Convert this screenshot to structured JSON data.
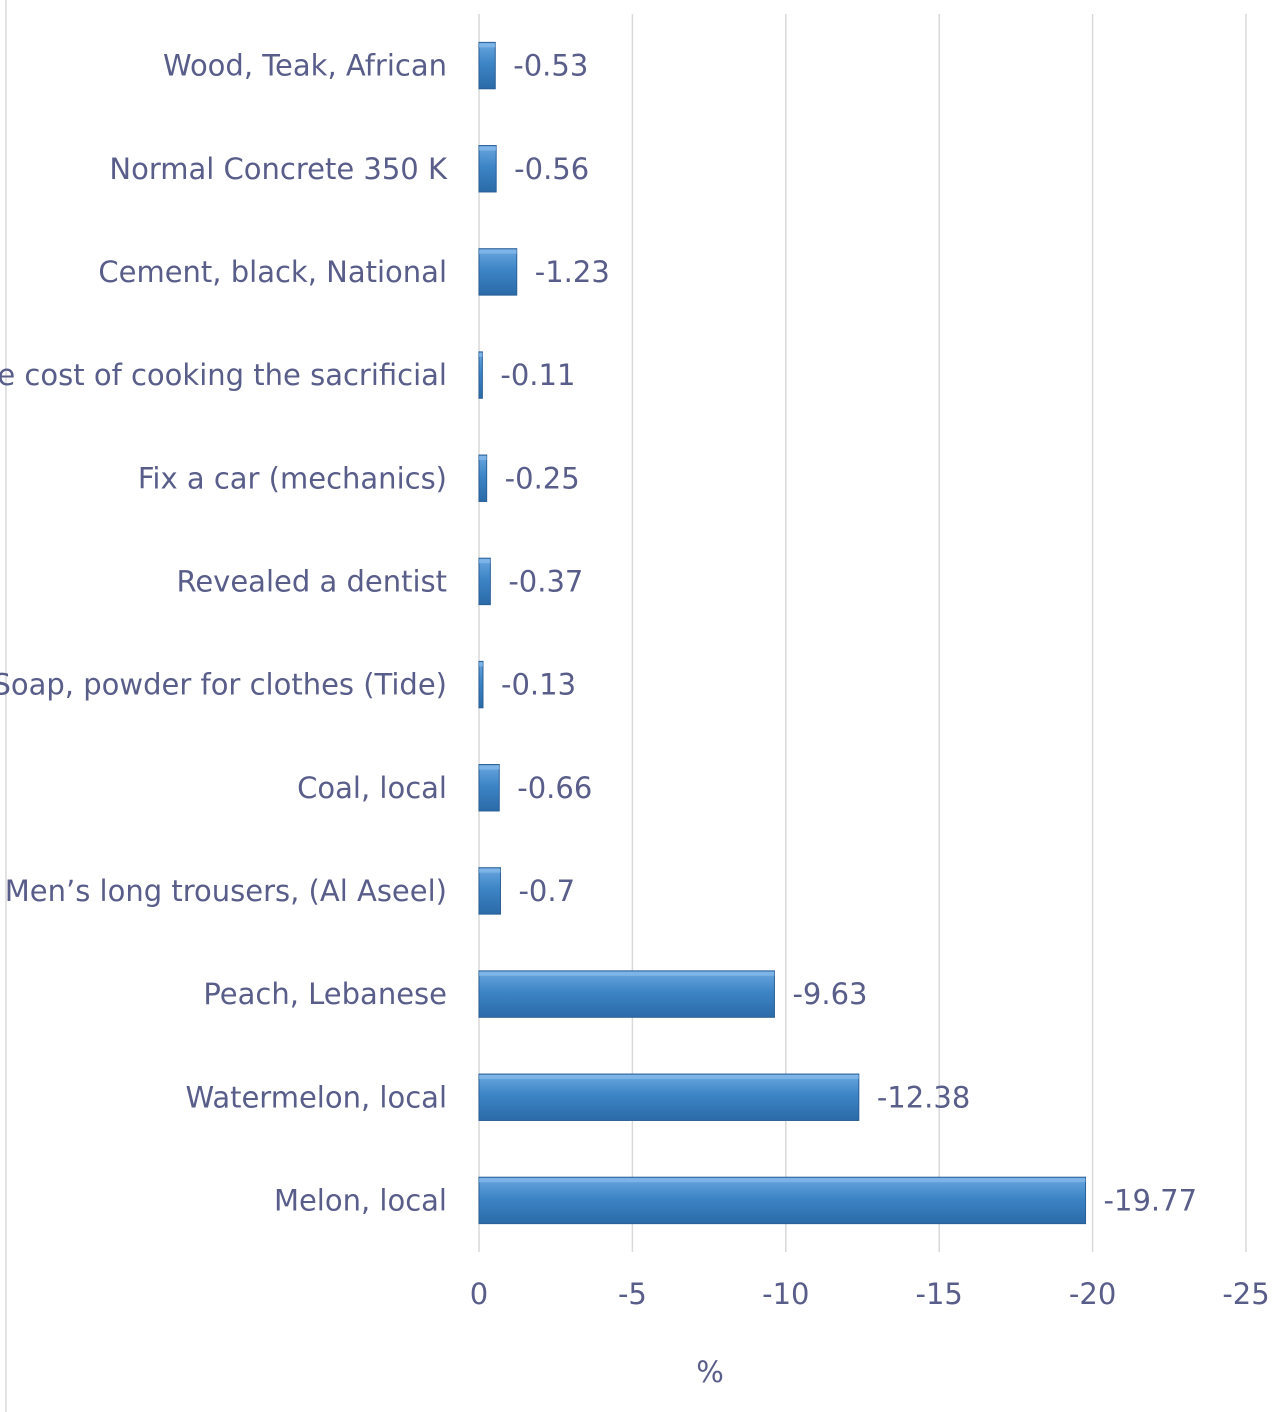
{
  "chart_data": {
    "type": "bar",
    "orientation": "horizontal",
    "categories": [
      "Wood, Teak, African",
      "Normal Concrete 350 K",
      "Cement, black, National",
      "The cost of cooking the sacrificial",
      "Fix a car (mechanics)",
      "Revealed a dentist",
      "Soap, powder for clothes (Tide)",
      "Coal, local",
      "Men’s long trousers, (Al Aseel)",
      "Peach, Lebanese",
      "Watermelon, local",
      "Melon, local"
    ],
    "values": [
      -0.53,
      -0.56,
      -1.23,
      -0.11,
      -0.25,
      -0.37,
      -0.13,
      -0.66,
      -0.7,
      -9.63,
      -12.38,
      -19.77
    ],
    "data_labels": [
      "-0.53",
      "-0.56",
      "-1.23",
      "-0.11",
      "-0.25",
      "-0.37",
      "-0.13",
      "-0.66",
      "-0.7",
      "-9.63",
      "-12.38",
      "-19.77"
    ],
    "xlabel": "%",
    "ylabel": "",
    "xlim": [
      0,
      -25
    ],
    "xticks": [
      0,
      -5,
      -10,
      -15,
      -20,
      -25
    ],
    "xtick_labels": [
      "0",
      "-5",
      "-10",
      "-15",
      "-20",
      "-25"
    ],
    "grid": true,
    "legend": "none",
    "bar_color": "#3d85c6"
  }
}
